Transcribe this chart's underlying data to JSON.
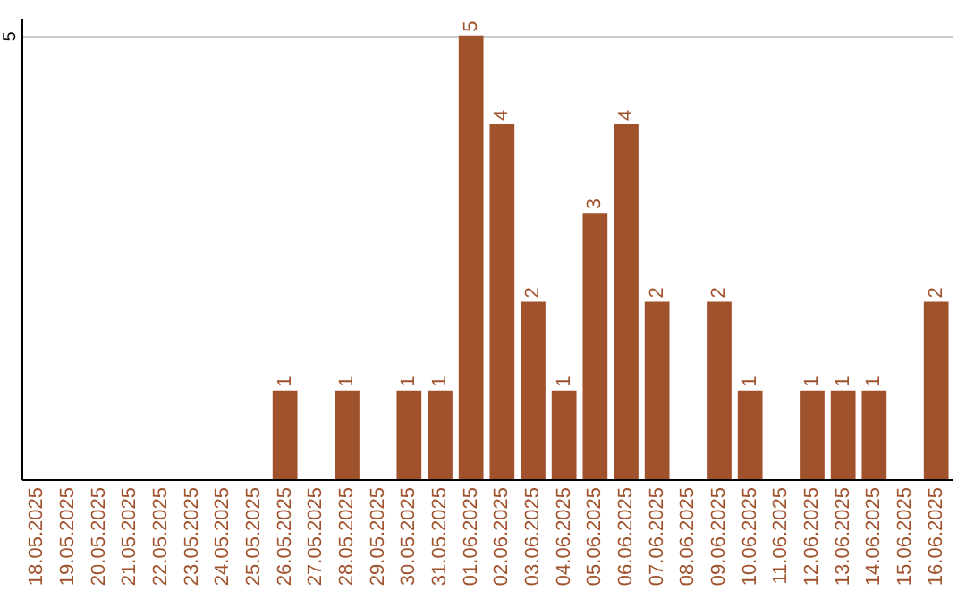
{
  "chart_data": {
    "type": "bar",
    "categories": [
      "18.05.2025",
      "19.05.2025",
      "20.05.2025",
      "21.05.2025",
      "22.05.2025",
      "23.05.2025",
      "24.05.2025",
      "25.05.2025",
      "26.05.2025",
      "27.05.2025",
      "28.05.2025",
      "29.05.2025",
      "30.05.2025",
      "31.05.2025",
      "01.06.2025",
      "02.06.2025",
      "03.06.2025",
      "04.06.2025",
      "05.06.2025",
      "06.06.2025",
      "07.06.2025",
      "08.06.2025",
      "09.06.2025",
      "10.06.2025",
      "11.06.2025",
      "12.06.2025",
      "13.06.2025",
      "14.06.2025",
      "15.06.2025",
      "16.06.2025"
    ],
    "values": [
      0,
      0,
      0,
      0,
      0,
      0,
      0,
      0,
      1,
      0,
      1,
      0,
      1,
      1,
      5,
      4,
      2,
      1,
      3,
      4,
      2,
      0,
      2,
      1,
      0,
      1,
      1,
      1,
      0,
      2
    ],
    "value_labels": [
      null,
      null,
      null,
      null,
      null,
      null,
      null,
      null,
      "1",
      null,
      "1",
      null,
      "1",
      "1",
      "5",
      "4",
      "2",
      "1",
      "3",
      "4",
      "2",
      null,
      "2",
      "1",
      null,
      "1",
      "1",
      "1",
      null,
      "2"
    ],
    "color": "#a0522d",
    "ylim": [
      0,
      5.2
    ],
    "yticks": [
      5
    ],
    "grid": "y"
  }
}
